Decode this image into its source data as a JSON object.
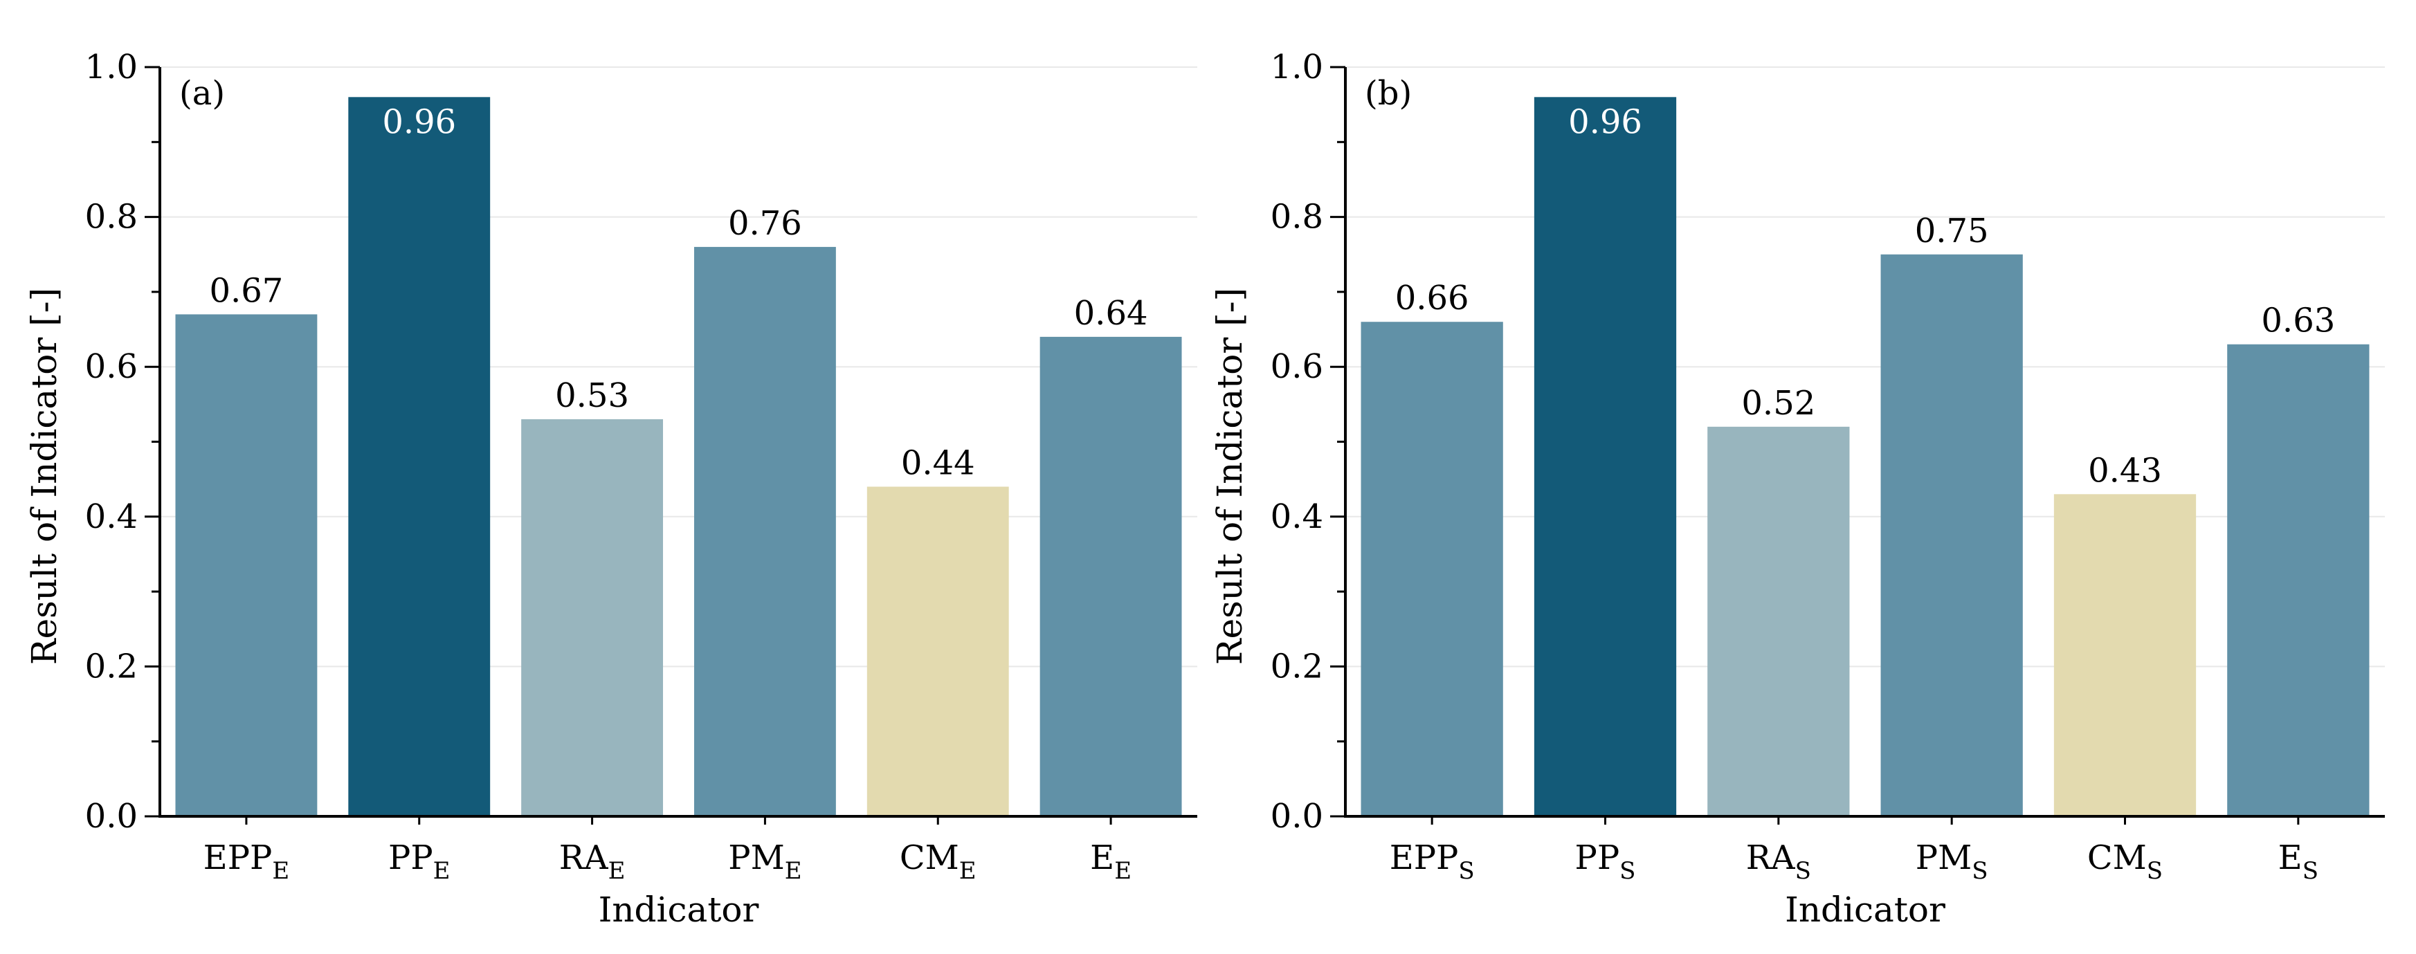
{
  "chart_data": [
    {
      "type": "bar",
      "panel_label": "(a)",
      "categories": [
        {
          "base": "EPP",
          "sub": "E"
        },
        {
          "base": "PP",
          "sub": "E"
        },
        {
          "base": "RA",
          "sub": "E"
        },
        {
          "base": "PM",
          "sub": "E"
        },
        {
          "base": "CM",
          "sub": "E"
        },
        {
          "base": "E",
          "sub": "E"
        }
      ],
      "values": [
        0.67,
        0.96,
        0.53,
        0.76,
        0.44,
        0.64
      ],
      "value_labels": [
        "0.67",
        "0.96",
        "0.53",
        "0.76",
        "0.44",
        "0.64"
      ],
      "bar_colors": [
        "#6191a7",
        "#135a78",
        "#98b5be",
        "#6191a7",
        "#e3daaf",
        "#6191a7"
      ],
      "xlabel": "Indicator",
      "ylabel": "Result of Indicator [-]",
      "ylim": [
        0.0,
        1.0
      ],
      "yticks": [
        "0.0",
        "0.2",
        "0.4",
        "0.6",
        "0.8",
        "1.0"
      ],
      "grid": true
    },
    {
      "type": "bar",
      "panel_label": "(b)",
      "categories": [
        {
          "base": "EPP",
          "sub": "S"
        },
        {
          "base": "PP",
          "sub": "S"
        },
        {
          "base": "RA",
          "sub": "S"
        },
        {
          "base": "PM",
          "sub": "S"
        },
        {
          "base": "CM",
          "sub": "S"
        },
        {
          "base": "E",
          "sub": "S"
        }
      ],
      "values": [
        0.66,
        0.96,
        0.52,
        0.75,
        0.43,
        0.63
      ],
      "value_labels": [
        "0.66",
        "0.96",
        "0.52",
        "0.75",
        "0.43",
        "0.63"
      ],
      "bar_colors": [
        "#6191a7",
        "#135a78",
        "#98b5be",
        "#6191a7",
        "#e3daaf",
        "#6191a7"
      ],
      "xlabel": "Indicator",
      "ylabel": "Result of Indicator [-]",
      "ylim": [
        0.0,
        1.0
      ],
      "yticks": [
        "0.0",
        "0.2",
        "0.4",
        "0.6",
        "0.8",
        "1.0"
      ],
      "grid": true
    }
  ]
}
